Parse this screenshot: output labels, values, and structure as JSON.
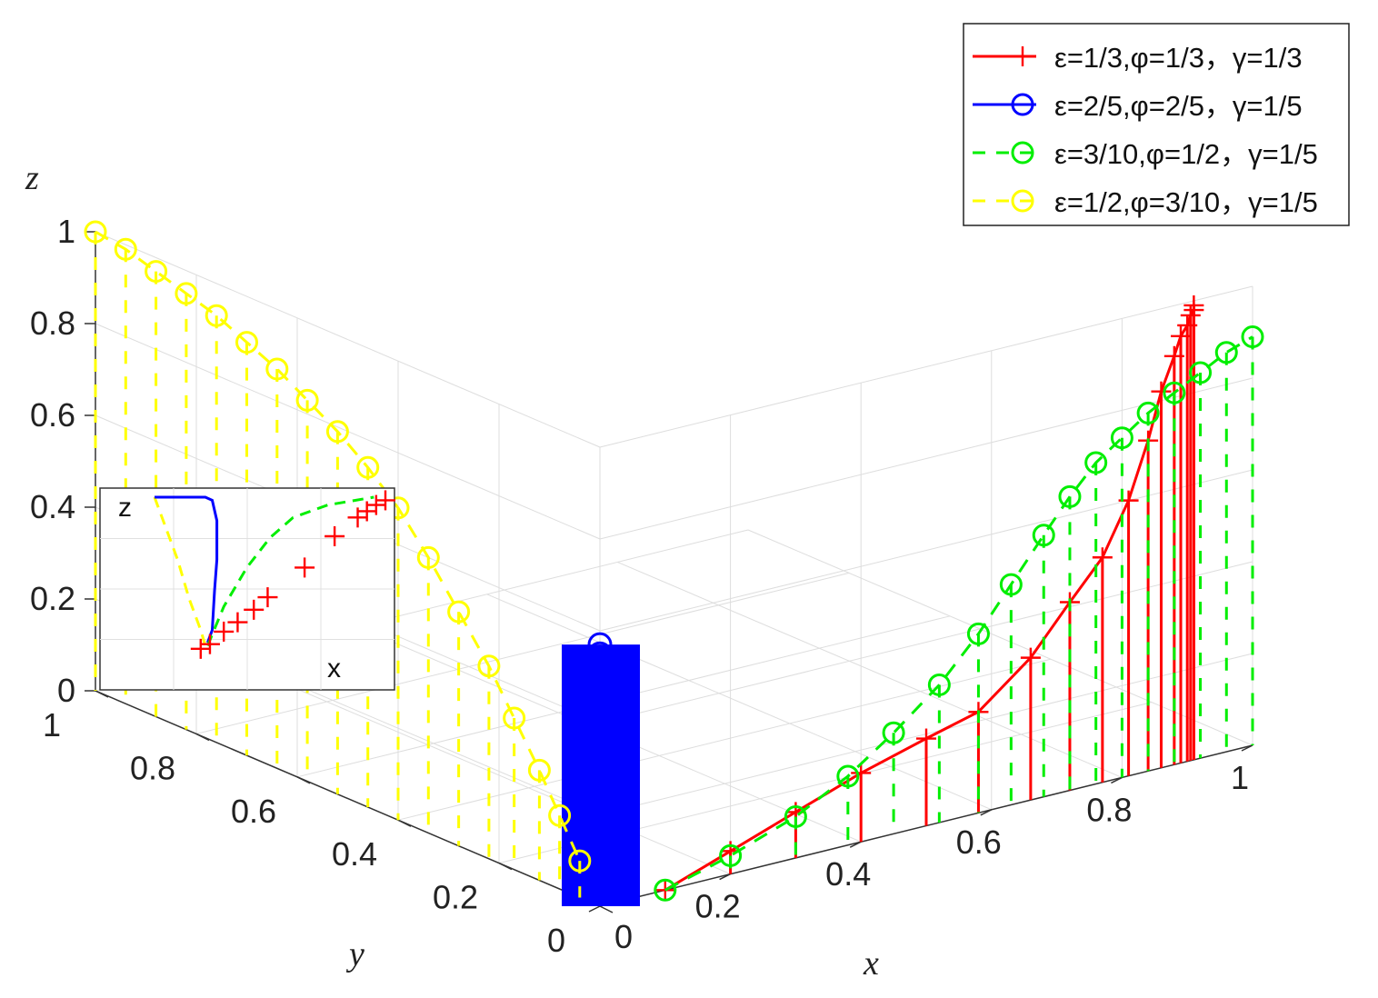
{
  "chart_data": {
    "type": "line",
    "projection": "3d",
    "title": "",
    "xlabel": "x",
    "ylabel": "y",
    "zlabel": "z",
    "xlim": [
      0,
      1
    ],
    "ylim": [
      0,
      1
    ],
    "zlim": [
      0,
      1
    ],
    "grid": true,
    "x_ticks": [
      "0",
      "0.2",
      "0.4",
      "0.6",
      "0.8",
      "1"
    ],
    "y_ticks": [
      "0",
      "0.2",
      "0.4",
      "0.6",
      "0.8",
      "1"
    ],
    "z_ticks": [
      "0",
      "0.2",
      "0.4",
      "0.6",
      "0.8",
      "1"
    ],
    "legend_position": "top-right",
    "series": [
      {
        "name": "ε=1/3,φ=1/3，γ=1/3",
        "color": "#ff0000",
        "line_style": "solid",
        "marker": "plus",
        "stems": "red vertical stems",
        "points": [
          [
            0.1,
            0.0,
            0.0
          ],
          [
            0.2,
            0.0,
            0.05
          ],
          [
            0.3,
            0.0,
            0.1
          ],
          [
            0.4,
            0.0,
            0.15
          ],
          [
            0.5,
            0.0,
            0.19
          ],
          [
            0.58,
            0.0,
            0.22
          ],
          [
            0.66,
            0.0,
            0.31
          ],
          [
            0.72,
            0.0,
            0.41
          ],
          [
            0.77,
            0.0,
            0.49
          ],
          [
            0.81,
            0.0,
            0.6
          ],
          [
            0.84,
            0.0,
            0.72
          ],
          [
            0.86,
            0.0,
            0.82
          ],
          [
            0.88,
            0.0,
            0.89
          ],
          [
            0.89,
            0.0,
            0.93
          ],
          [
            0.9,
            0.0,
            0.95
          ],
          [
            0.905,
            0.0,
            0.97
          ],
          [
            0.91,
            0.0,
            0.98
          ],
          [
            0.91,
            0.0,
            0.99
          ]
        ]
      },
      {
        "name": "ε=2/5,φ=2/5，γ=1/5",
        "color": "#0000ff",
        "line_style": "solid",
        "marker": "circle",
        "stems": "blue vertical band",
        "points": [
          [
            0.0,
            0.0,
            0.3
          ],
          [
            0.0,
            0.0,
            0.35
          ],
          [
            0.0,
            0.0,
            0.4
          ],
          [
            0.0,
            0.0,
            0.43
          ],
          [
            0.0,
            0.0,
            0.45
          ],
          [
            0.0,
            0.0,
            0.47
          ],
          [
            0.0,
            0.0,
            0.49
          ],
          [
            0.0,
            0.0,
            0.52
          ],
          [
            0.0,
            0.0,
            0.55
          ],
          [
            0.0,
            0.0,
            0.57
          ]
        ]
      },
      {
        "name": "ε=3/10,φ=1/2，γ=1/5",
        "color": "#00ee00",
        "line_style": "dashed",
        "marker": "circle",
        "stems": "green dashed stems",
        "points": [
          [
            0.1,
            0.0,
            0.0
          ],
          [
            0.2,
            0.0,
            0.04
          ],
          [
            0.3,
            0.0,
            0.09
          ],
          [
            0.38,
            0.0,
            0.15
          ],
          [
            0.45,
            0.0,
            0.22
          ],
          [
            0.52,
            0.0,
            0.3
          ],
          [
            0.58,
            0.0,
            0.39
          ],
          [
            0.63,
            0.0,
            0.48
          ],
          [
            0.68,
            0.0,
            0.57
          ],
          [
            0.72,
            0.0,
            0.64
          ],
          [
            0.76,
            0.0,
            0.7
          ],
          [
            0.8,
            0.0,
            0.74
          ],
          [
            0.84,
            0.0,
            0.78
          ],
          [
            0.88,
            0.0,
            0.81
          ],
          [
            0.92,
            0.0,
            0.84
          ],
          [
            0.96,
            0.0,
            0.87
          ],
          [
            1.0,
            0.0,
            0.89
          ]
        ]
      },
      {
        "name": "ε=1/2,φ=3/10，γ=1/5",
        "color": "#ffff00",
        "line_style": "dashed",
        "marker": "circle",
        "stems": "yellow dashed stems",
        "points": [
          [
            0.0,
            1.0,
            1.0
          ],
          [
            0.0,
            0.94,
            0.99
          ],
          [
            0.0,
            0.88,
            0.97
          ],
          [
            0.0,
            0.82,
            0.95
          ],
          [
            0.0,
            0.76,
            0.93
          ],
          [
            0.0,
            0.7,
            0.9
          ],
          [
            0.0,
            0.64,
            0.87
          ],
          [
            0.0,
            0.58,
            0.83
          ],
          [
            0.0,
            0.52,
            0.79
          ],
          [
            0.0,
            0.46,
            0.74
          ],
          [
            0.0,
            0.4,
            0.68
          ],
          [
            0.0,
            0.34,
            0.6
          ],
          [
            0.0,
            0.28,
            0.51
          ],
          [
            0.0,
            0.22,
            0.42
          ],
          [
            0.0,
            0.17,
            0.33
          ],
          [
            0.0,
            0.12,
            0.24
          ],
          [
            0.0,
            0.08,
            0.16
          ],
          [
            0.0,
            0.04,
            0.08
          ]
        ]
      }
    ],
    "inset": {
      "xlabel": "x",
      "zlabel": "z",
      "series": [
        {
          "name": "yellow",
          "color": "#ffff00",
          "points": [
            [
              0.0,
              1.0
            ],
            [
              0.05,
              0.8
            ],
            [
              0.1,
              0.6
            ],
            [
              0.15,
              0.35
            ],
            [
              0.2,
              0.15
            ],
            [
              0.22,
              0.05
            ]
          ]
        },
        {
          "name": "blue",
          "color": "#0000ff",
          "points": [
            [
              0.0,
              1.0
            ],
            [
              0.22,
              1.0
            ],
            [
              0.25,
              0.98
            ],
            [
              0.27,
              0.85
            ],
            [
              0.27,
              0.6
            ],
            [
              0.26,
              0.4
            ],
            [
              0.25,
              0.15
            ],
            [
              0.23,
              0.07
            ]
          ]
        },
        {
          "name": "green",
          "color": "#00ee00",
          "points": [
            [
              0.23,
              0.05
            ],
            [
              0.3,
              0.3
            ],
            [
              0.4,
              0.55
            ],
            [
              0.5,
              0.74
            ],
            [
              0.6,
              0.87
            ],
            [
              0.75,
              0.95
            ],
            [
              0.95,
              1.0
            ]
          ]
        },
        {
          "name": "red",
          "color": "#ff0000",
          "points": [
            [
              0.2,
              0.03
            ],
            [
              0.24,
              0.06
            ],
            [
              0.3,
              0.14
            ],
            [
              0.36,
              0.2
            ],
            [
              0.43,
              0.28
            ],
            [
              0.49,
              0.36
            ],
            [
              0.65,
              0.55
            ],
            [
              0.78,
              0.75
            ],
            [
              0.88,
              0.87
            ],
            [
              0.92,
              0.91
            ],
            [
              0.96,
              0.95
            ],
            [
              1.0,
              0.98
            ]
          ]
        }
      ]
    }
  }
}
